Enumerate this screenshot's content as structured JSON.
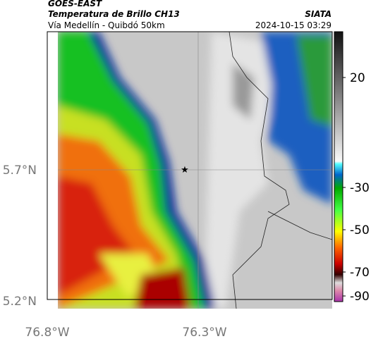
{
  "header": {
    "satellite": "GOES-EAST",
    "product": "Temperatura de Brillo CH13",
    "region": "Vía Medellín - Quibdó 50km",
    "source": "SIATA",
    "timestamp": "2024-10-15 03:29"
  },
  "axes": {
    "latitude_labels": [
      "5.7°N",
      "5.2°N"
    ],
    "longitude_labels": [
      "76.8°W",
      "76.3°W"
    ]
  },
  "colorbar": {
    "ticks": [
      "20",
      "-30",
      "-50",
      "-70",
      "-90"
    ]
  }
}
